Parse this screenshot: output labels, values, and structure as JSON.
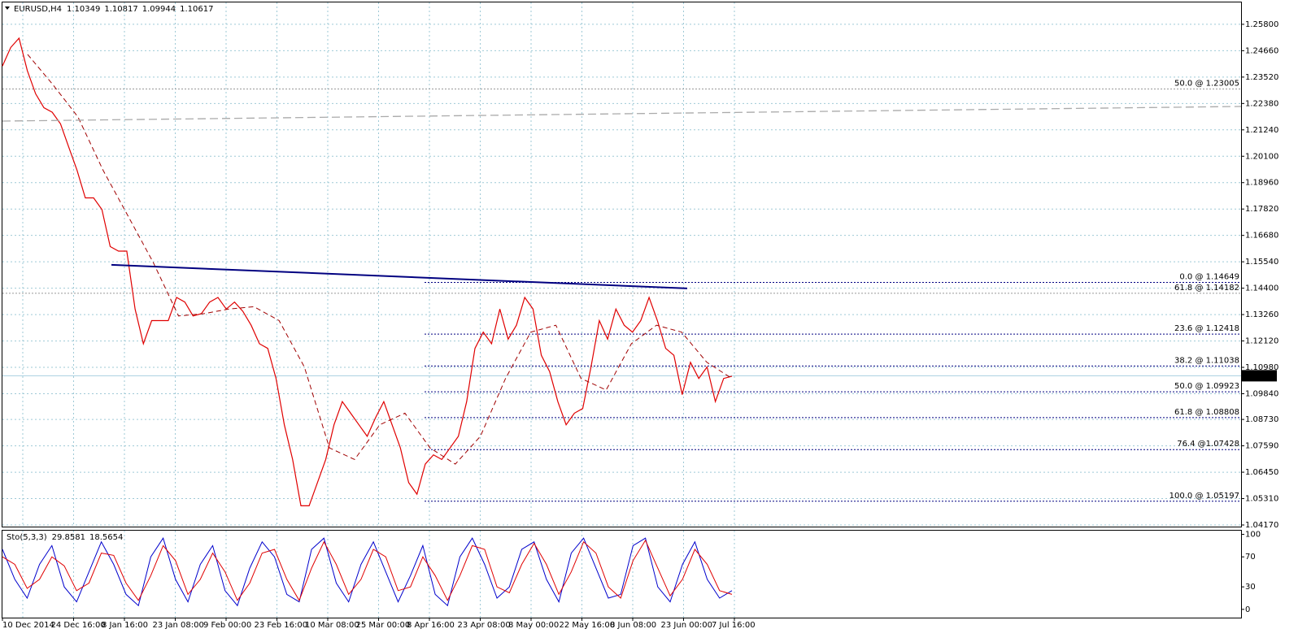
{
  "chart_data": [
    {
      "type": "line",
      "title": "EURUSD,H4",
      "header_values": [
        1.10349,
        1.10817,
        1.09944,
        1.10617
      ],
      "ylim": [
        1.041,
        1.2678
      ],
      "yticks": [
        {
          "value": 1.258,
          "label": "1.25800"
        },
        {
          "value": 1.2466,
          "label": "1.24660"
        },
        {
          "value": 1.2352,
          "label": "1.23520"
        },
        {
          "value": 1.2238,
          "label": "1.22380"
        },
        {
          "value": 1.2124,
          "label": "1.21240"
        },
        {
          "value": 1.201,
          "label": "1.20100"
        },
        {
          "value": 1.1896,
          "label": "1.18960"
        },
        {
          "value": 1.1782,
          "label": "1.17820"
        },
        {
          "value": 1.1668,
          "label": "1.16680"
        },
        {
          "value": 1.1554,
          "label": "1.15540"
        },
        {
          "value": 1.144,
          "label": "1.14400"
        },
        {
          "value": 1.1326,
          "label": "1.13260"
        },
        {
          "value": 1.1212,
          "label": "1.12120"
        },
        {
          "value": 1.1098,
          "label": "1.10980"
        },
        {
          "value": 1.0984,
          "label": "1.09840"
        },
        {
          "value": 1.0873,
          "label": "1.08730"
        },
        {
          "value": 1.0759,
          "label": "1.07590"
        },
        {
          "value": 1.0645,
          "label": "1.06450"
        },
        {
          "value": 1.0531,
          "label": "1.05310"
        },
        {
          "value": 1.0417,
          "label": "1.04170"
        }
      ],
      "x_labels": [
        "10 Dec 2014",
        "24 Dec 16:00",
        "8 Jan 16:00",
        "23 Jan 08:00",
        "9 Feb 00:00",
        "23 Feb 16:00",
        "10 Mar 08:00",
        "25 Mar 00:00",
        "8 Apr 16:00",
        "23 Apr 08:00",
        "8 May 00:00",
        "22 May 16:00",
        "8 Jun 08:00",
        "23 Jun 00:00",
        "7 Jul 16:00"
      ],
      "current_price": 1.10617,
      "grid": true,
      "series": [
        {
          "color": "#e00000",
          "values": [
            1.24,
            1.248,
            1.252,
            1.238,
            1.228,
            1.222,
            1.22,
            1.215,
            1.205,
            1.195,
            1.183,
            1.183,
            1.178,
            1.162,
            1.16,
            1.16,
            1.135,
            1.12,
            1.13,
            1.13,
            1.13,
            1.14,
            1.138,
            1.132,
            1.133,
            1.138,
            1.14,
            1.135,
            1.138,
            1.134,
            1.128,
            1.12,
            1.118,
            1.105,
            1.085,
            1.07,
            1.05,
            1.05,
            1.06,
            1.07,
            1.085,
            1.095,
            1.09,
            1.085,
            1.08,
            1.088,
            1.095,
            1.085,
            1.075,
            1.06,
            1.055,
            1.068,
            1.072,
            1.07,
            1.075,
            1.08,
            1.095,
            1.118,
            1.125,
            1.12,
            1.135,
            1.122,
            1.128,
            1.14,
            1.135,
            1.115,
            1.108,
            1.095,
            1.085,
            1.09,
            1.092,
            1.11,
            1.13,
            1.122,
            1.135,
            1.128,
            1.125,
            1.13,
            1.14,
            1.13,
            1.118,
            1.115,
            1.098,
            1.112,
            1.105,
            1.11,
            1.095,
            1.105,
            1.106
          ]
        },
        {
          "color": "#a00000",
          "values": [
            null,
            1.245,
            1.232,
            1.218,
            1.195,
            1.175,
            1.155,
            1.132,
            1.133,
            1.135,
            1.136,
            1.13,
            1.11,
            1.075,
            1.07,
            1.085,
            1.09,
            1.075,
            1.068,
            1.08,
            1.105,
            1.125,
            1.128,
            1.105,
            1.1,
            1.12,
            1.128,
            1.125,
            1.112,
            1.105
          ]
        },
        {
          "color": "#aaaaaa",
          "values": [
            1.2162,
            1.2225
          ]
        },
        {
          "color": "#000080",
          "values": [
            1.1541,
            1.1439
          ]
        }
      ],
      "fib_color": "#000080",
      "fib_levels": [
        {
          "value": 1.14649,
          "label": "0.0 @ 1.14649"
        },
        {
          "value": 1.12418,
          "label": "23.6 @ 1.12418"
        },
        {
          "value": 1.11038,
          "label": "38.2 @ 1.11038"
        },
        {
          "value": 1.09923,
          "label": "50.0 @ 1.09923"
        },
        {
          "value": 1.08808,
          "label": "61.8 @ 1.08808"
        },
        {
          "value": 1.07428,
          "label": "76.4 @1.07428"
        },
        {
          "value": 1.05197,
          "label": "100.0 @ 1.05197"
        }
      ],
      "fib_secondary_color": "#999999",
      "fib_levels_secondary": [
        {
          "value": 1.14182,
          "label": "61.8 @ 1.14182"
        },
        {
          "value": 1.23005,
          "label": "50.0 @ 1.23005"
        }
      ]
    },
    {
      "type": "line",
      "title": "Sto(5,3,3)",
      "header_values": [
        29.8581,
        18.5654
      ],
      "ylim": [
        -11,
        106
      ],
      "yticks": [
        100,
        70,
        30,
        0
      ],
      "series": [
        {
          "color": "#0000cc",
          "values": [
            80,
            40,
            15,
            60,
            85,
            30,
            10,
            50,
            90,
            60,
            20,
            5,
            70,
            95,
            40,
            10,
            60,
            85,
            25,
            5,
            55,
            90,
            70,
            20,
            10,
            80,
            95,
            35,
            10,
            60,
            90,
            50,
            10,
            45,
            85,
            20,
            5,
            70,
            95,
            60,
            15,
            30,
            80,
            90,
            40,
            10,
            75,
            95,
            55,
            15,
            20,
            85,
            95,
            30,
            10,
            60,
            90,
            40,
            15,
            25
          ]
        },
        {
          "color": "#e00000",
          "values": [
            70,
            60,
            28,
            40,
            70,
            58,
            25,
            35,
            75,
            72,
            35,
            12,
            45,
            85,
            65,
            20,
            40,
            75,
            50,
            12,
            35,
            75,
            80,
            40,
            12,
            55,
            90,
            60,
            20,
            40,
            80,
            70,
            25,
            30,
            70,
            45,
            12,
            45,
            85,
            80,
            30,
            22,
            60,
            88,
            60,
            20,
            50,
            90,
            75,
            30,
            15,
            65,
            92,
            55,
            18,
            40,
            80,
            60,
            25,
            20
          ]
        }
      ]
    }
  ]
}
